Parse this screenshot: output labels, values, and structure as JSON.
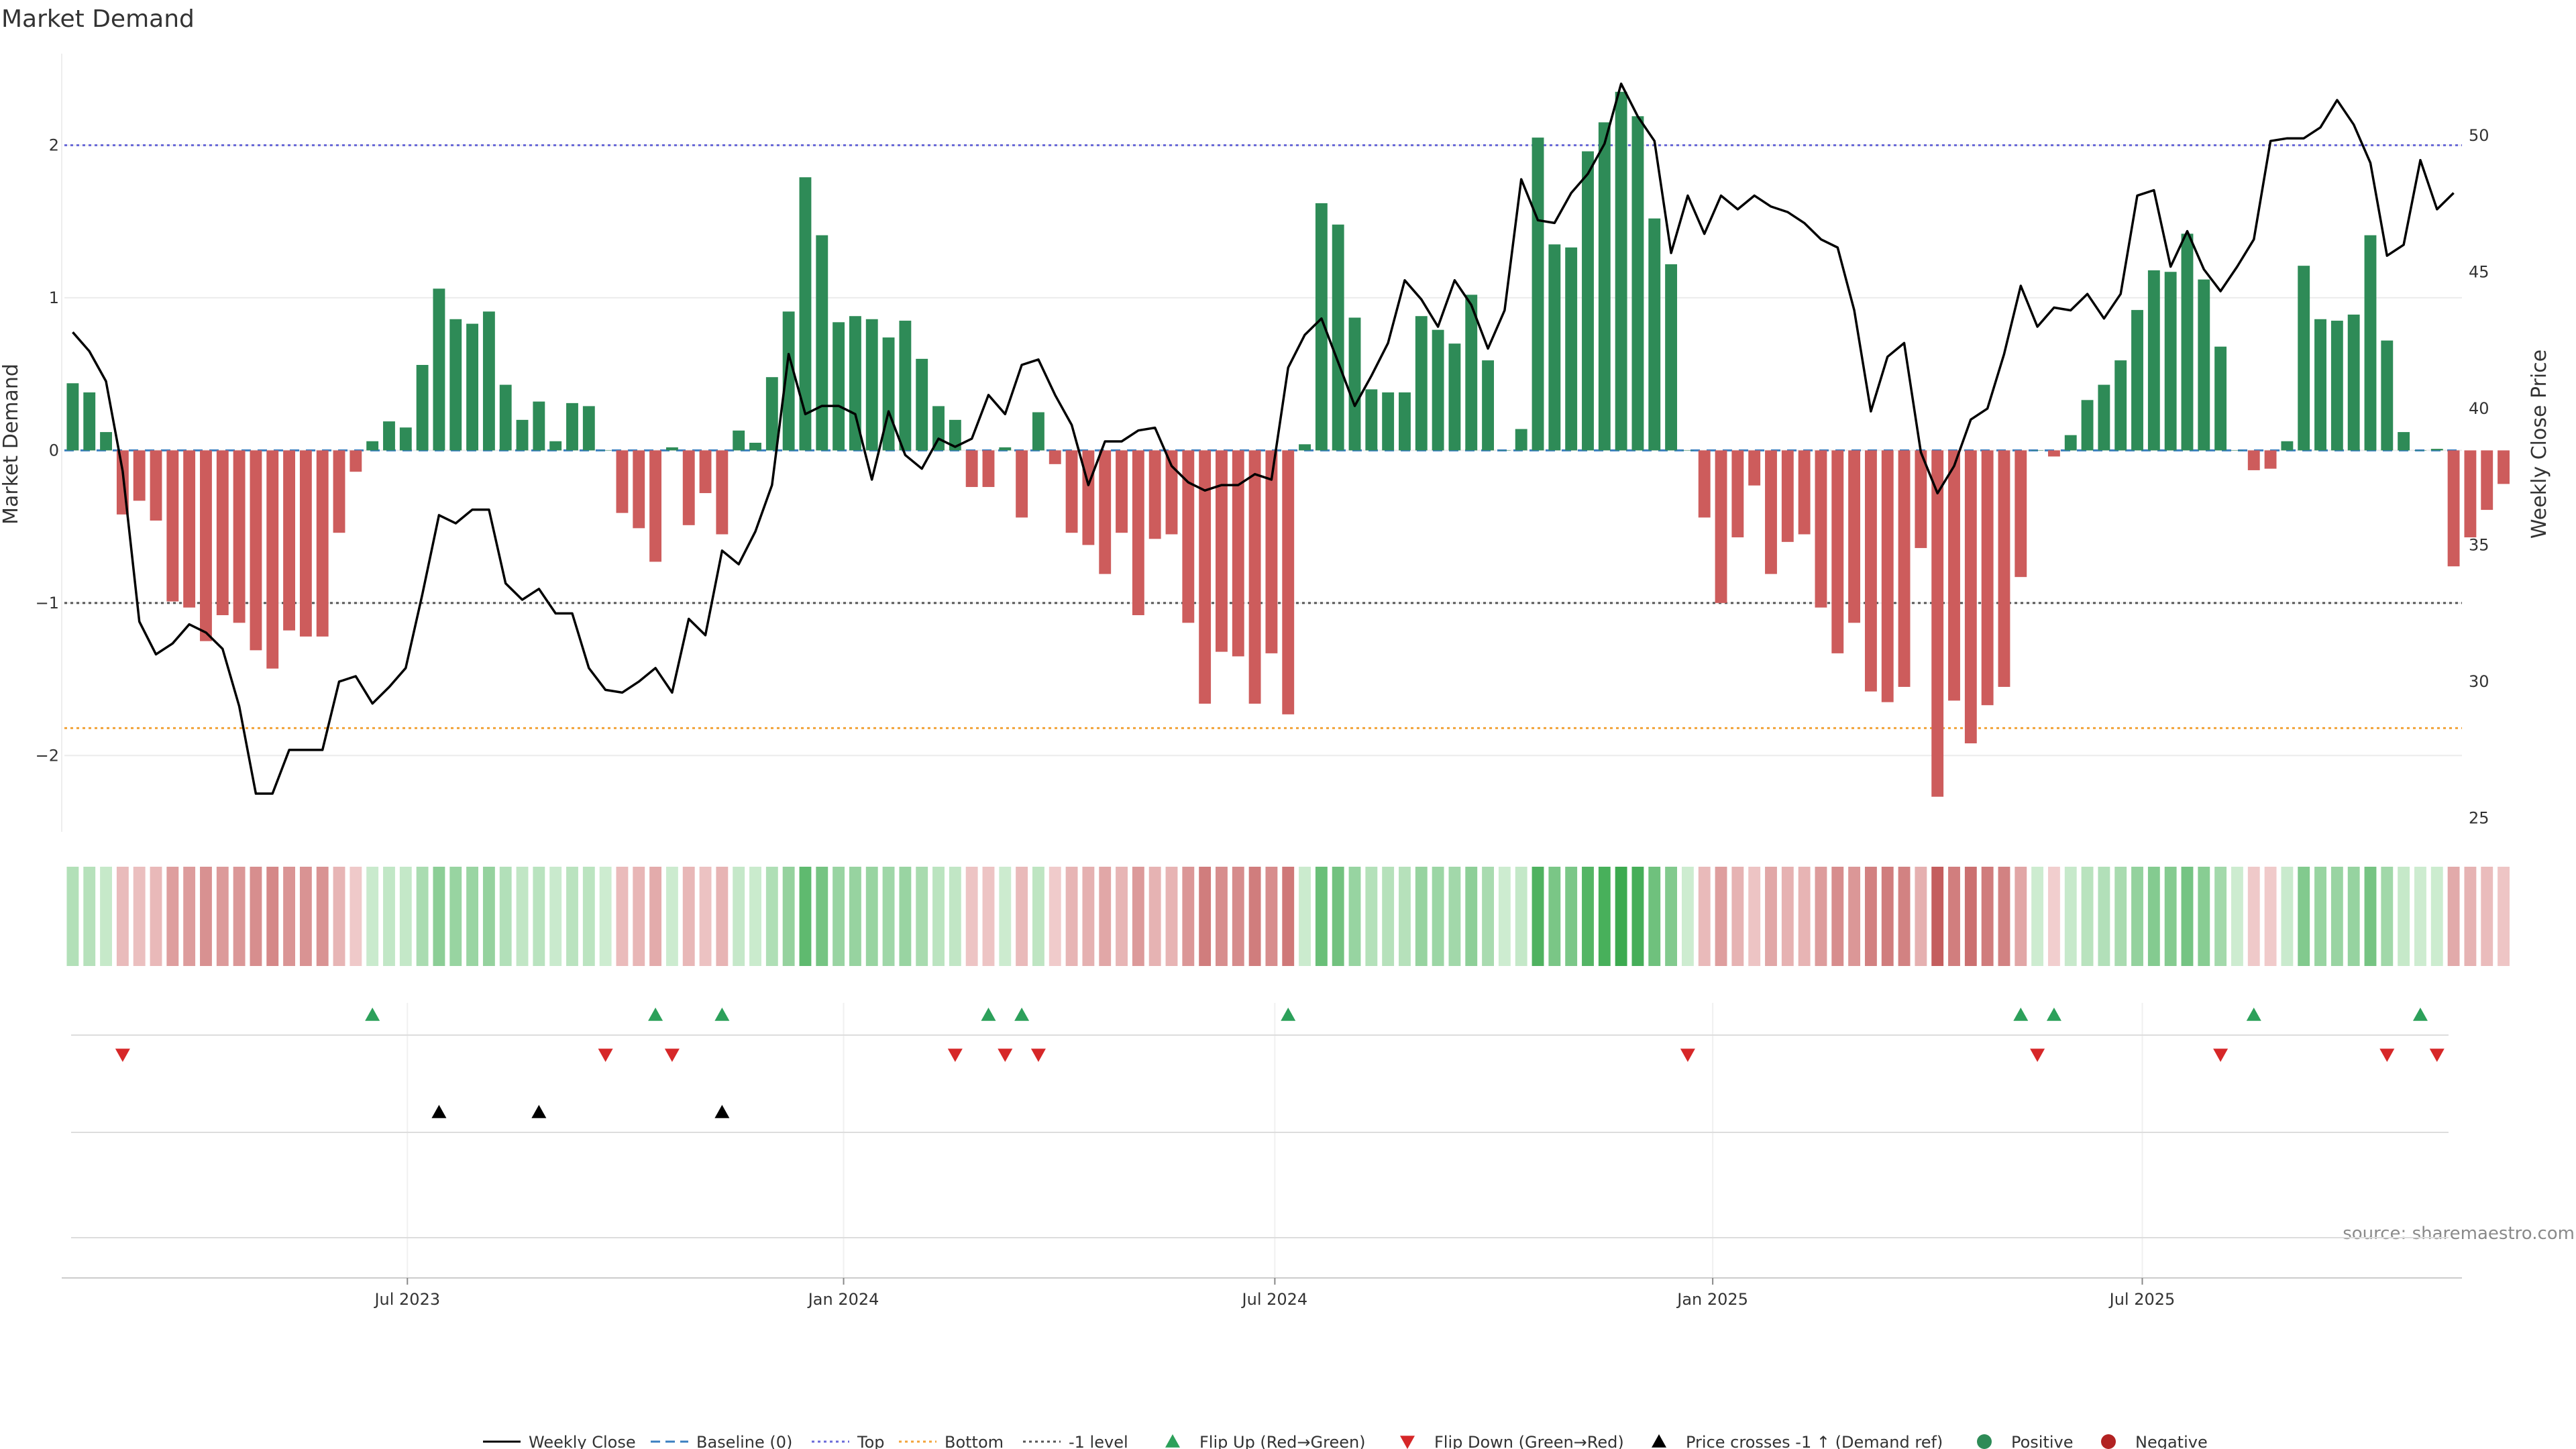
{
  "chart_data": {
    "type": "bar",
    "title": "Market Demand",
    "ylabel": "Market Demand",
    "y2label": "Weekly Close Price",
    "ylim": [
      -2.5,
      2.6
    ],
    "y2lim": [
      24.5,
      53.0
    ],
    "yticks": [
      -2,
      -1,
      0,
      1,
      2
    ],
    "yticklabels": [
      "−2",
      "−1",
      "0",
      "1",
      "2"
    ],
    "y2ticks": [
      25,
      30,
      35,
      40,
      45,
      50
    ],
    "levels": {
      "top": 2.0,
      "bottom": -1.82,
      "minus_one": -1.0
    },
    "x_weeks": 144,
    "xticks": [
      {
        "label": "Jul 2023",
        "week": 20.6
      },
      {
        "label": "Jan 2024",
        "week": 46.8
      },
      {
        "label": "Jul 2024",
        "week": 72.7
      },
      {
        "label": "Jan 2025",
        "week": 99.0
      },
      {
        "label": "Jul 2025",
        "week": 124.8
      }
    ],
    "demand": [
      0.44,
      0.38,
      0.12,
      -0.42,
      -0.33,
      -0.46,
      -0.99,
      -1.03,
      -1.25,
      -1.08,
      -1.13,
      -1.31,
      -1.43,
      -1.18,
      -1.22,
      -1.22,
      -0.54,
      -0.14,
      0.06,
      0.19,
      0.15,
      0.56,
      1.06,
      0.86,
      0.83,
      0.91,
      0.43,
      0.2,
      0.32,
      0.06,
      0.31,
      0.29,
      0.0,
      -0.41,
      -0.51,
      -0.73,
      0.02,
      -0.49,
      -0.28,
      -0.55,
      0.13,
      0.05,
      0.48,
      0.91,
      1.79,
      1.41,
      0.84,
      0.88,
      0.86,
      0.74,
      0.85,
      0.6,
      0.29,
      0.2,
      -0.24,
      -0.24,
      0.02,
      -0.44,
      0.25,
      -0.09,
      -0.54,
      -0.62,
      -0.81,
      -0.54,
      -1.08,
      -0.58,
      -0.55,
      -1.13,
      -1.66,
      -1.32,
      -1.35,
      -1.66,
      -1.33,
      -1.73,
      0.04,
      1.62,
      1.48,
      0.87,
      0.4,
      0.38,
      0.38,
      0.88,
      0.79,
      0.7,
      1.02,
      0.59,
      0.0,
      0.14,
      2.05,
      1.35,
      1.33,
      1.96,
      2.15,
      2.35,
      2.19,
      1.52,
      1.22,
      0.0,
      -0.44,
      -1.0,
      -0.57,
      -0.23,
      -0.81,
      -0.6,
      -0.55,
      -1.03,
      -1.33,
      -1.13,
      -1.58,
      -1.65,
      -1.55,
      -0.64,
      -2.27,
      -1.64,
      -1.92,
      -1.67,
      -1.55,
      -0.83,
      0.0,
      -0.04,
      0.1,
      0.33,
      0.43,
      0.59,
      0.92,
      1.18,
      1.17,
      1.42,
      1.12,
      0.68,
      0.0,
      -0.13,
      -0.12,
      0.06,
      1.21,
      0.86,
      0.85,
      0.89,
      1.41,
      0.72,
      0.12,
      0.0,
      0.01,
      -0.76,
      -0.57,
      -0.39,
      -0.22
    ],
    "price": [
      42.8,
      42.1,
      41.0,
      37.7,
      32.2,
      31.0,
      31.4,
      32.1,
      31.8,
      31.2,
      29.1,
      25.9,
      25.9,
      27.5,
      27.5,
      27.5,
      30.0,
      30.2,
      29.2,
      29.8,
      30.5,
      33.2,
      36.1,
      35.8,
      36.3,
      36.3,
      33.6,
      33.0,
      33.4,
      32.5,
      32.5,
      30.5,
      29.7,
      29.6,
      30.0,
      30.5,
      29.6,
      32.3,
      31.7,
      34.8,
      34.3,
      35.5,
      37.2,
      42.0,
      39.8,
      40.1,
      40.1,
      39.8,
      37.4,
      39.9,
      38.3,
      37.8,
      38.9,
      38.6,
      38.9,
      40.5,
      39.8,
      41.6,
      41.8,
      40.5,
      39.4,
      37.2,
      38.8,
      38.8,
      39.2,
      39.3,
      37.9,
      37.3,
      37.0,
      37.2,
      37.2,
      37.6,
      37.4,
      41.5,
      42.7,
      43.3,
      41.7,
      40.1,
      41.2,
      42.4,
      44.7,
      44.0,
      43.0,
      44.7,
      43.8,
      42.2,
      43.6,
      48.4,
      46.9,
      46.8,
      47.9,
      48.6,
      49.7,
      51.9,
      50.7,
      49.8,
      45.7,
      47.8,
      46.4,
      47.8,
      47.3,
      47.8,
      47.4,
      47.2,
      46.8,
      46.2,
      45.9,
      43.6,
      39.9,
      41.9,
      42.4,
      38.4,
      36.9,
      37.9,
      39.6,
      40.0,
      42.0,
      44.5,
      43.0,
      43.7,
      43.6,
      44.2,
      43.3,
      44.2,
      47.8,
      48.0,
      45.2,
      46.5,
      45.1,
      44.3,
      45.2,
      46.2,
      49.8,
      49.9,
      49.9,
      50.3,
      51.3,
      50.4,
      49.0,
      45.6,
      46.0,
      49.1,
      47.3,
      47.9
    ],
    "flip_up_weeks": [
      18,
      35,
      39,
      55,
      57,
      73,
      117,
      119,
      131,
      141
    ],
    "flip_down_weeks": [
      3,
      32,
      36,
      53,
      56,
      58,
      97,
      118,
      129,
      139,
      142
    ],
    "price_cross_weeks": [
      22,
      28,
      39
    ],
    "legend": [
      {
        "label": "Weekly Close",
        "kind": "line-solid",
        "color": "#000000"
      },
      {
        "label": "Baseline (0)",
        "kind": "line-dash",
        "color": "#3a7fc0"
      },
      {
        "label": "Top",
        "kind": "line-dot",
        "color": "#6a6ad8"
      },
      {
        "label": "Bottom",
        "kind": "line-dot",
        "color": "#f2a33a"
      },
      {
        "label": "-1 level",
        "kind": "line-dot",
        "color": "#555555"
      },
      {
        "label": "Flip Up (Red→Green)",
        "kind": "tri-up",
        "color": "#2ca05a"
      },
      {
        "label": "Flip Down (Green→Red)",
        "kind": "tri-down",
        "color": "#d62728"
      },
      {
        "label": "Price crosses -1 ↑ (Demand ref)",
        "kind": "tri-up",
        "color": "#000000"
      },
      {
        "label": "Positive",
        "kind": "dot",
        "color": "#2e8b57"
      },
      {
        "label": "Negative",
        "kind": "dot",
        "color": "#b22222"
      }
    ],
    "source": "source: sharemaestro.com"
  },
  "colors": {
    "positive": "#2e8b57",
    "negative": "#cd5c5c",
    "price": "#000000",
    "baseline": "#3a7fc0",
    "top": "#6a6ad8",
    "bottom": "#f2a33a",
    "minus_one": "#555555",
    "flip_up": "#2ca05a",
    "flip_down": "#d62728",
    "cross": "#000000",
    "grid": "#ececec"
  }
}
